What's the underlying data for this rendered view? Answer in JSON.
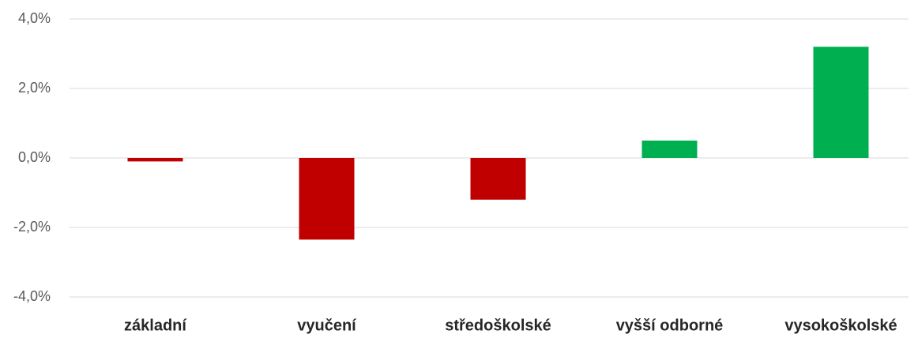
{
  "chart_data": {
    "type": "bar",
    "categories": [
      "základní",
      "vyučení",
      "středoškolské",
      "vyšší odborné",
      "vysokoškolské"
    ],
    "values": [
      -0.1,
      -2.35,
      -1.2,
      0.5,
      3.2
    ],
    "colors": [
      "#c00000",
      "#c00000",
      "#c00000",
      "#00b050",
      "#00b050"
    ],
    "ylim": [
      -4,
      4
    ],
    "yticks": [
      {
        "value": -4,
        "label": "-4,0%"
      },
      {
        "value": -2,
        "label": "-2,0%"
      },
      {
        "value": 0,
        "label": "0,0%"
      },
      {
        "value": 2,
        "label": "2,0%"
      },
      {
        "value": 4,
        "label": "4,0%"
      }
    ],
    "grid": true
  }
}
